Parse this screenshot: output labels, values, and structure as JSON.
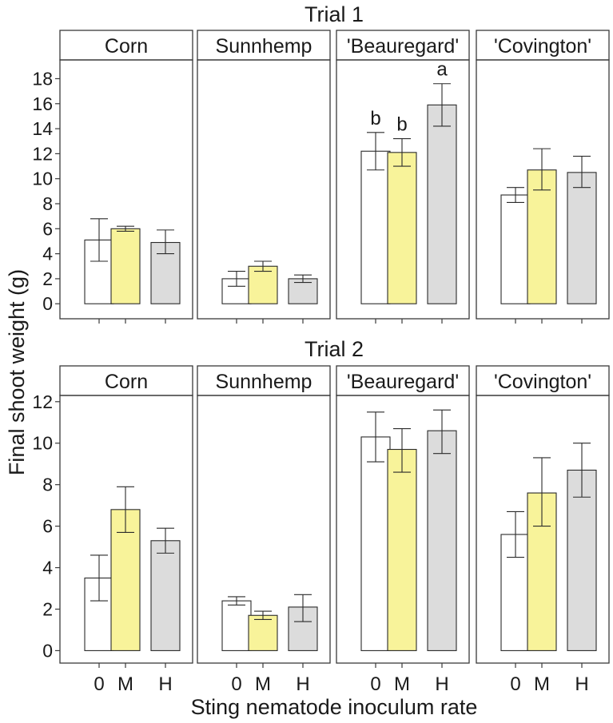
{
  "figure": {
    "ylabel": "Final shoot weight (g)",
    "xlabel": "Sting nematode inoculum rate"
  },
  "colors": {
    "0": "#ffffff",
    "M": "#f8f39a",
    "H": "#dcdcdc"
  },
  "chart_data": [
    {
      "type": "bar",
      "title": "Trial 1",
      "xlabel": "Sting nematode inoculum rate",
      "ylabel": "Final shoot weight (g)",
      "ylim": [
        -1.2,
        19.5
      ],
      "yticks": [
        0,
        2,
        4,
        6,
        8,
        10,
        12,
        14,
        16,
        18
      ],
      "categories": [
        "0",
        "M",
        "H"
      ],
      "panels": [
        {
          "name": "Corn",
          "values": [
            5.1,
            6.0,
            4.9
          ],
          "err_lo": [
            3.4,
            5.8,
            4.0
          ],
          "err_hi": [
            6.8,
            6.2,
            5.9
          ],
          "letters": [
            "",
            "",
            ""
          ]
        },
        {
          "name": "Sunnhemp",
          "values": [
            2.0,
            3.0,
            2.0
          ],
          "err_lo": [
            1.4,
            2.6,
            1.7
          ],
          "err_hi": [
            2.6,
            3.4,
            2.3
          ],
          "letters": [
            "",
            "",
            ""
          ]
        },
        {
          "name": "'Beauregard'",
          "values": [
            12.2,
            12.1,
            15.9
          ],
          "err_lo": [
            10.7,
            11.0,
            14.2
          ],
          "err_hi": [
            13.7,
            13.2,
            17.6
          ],
          "letters": [
            "b",
            "b",
            "a"
          ]
        },
        {
          "name": "'Covington'",
          "values": [
            8.7,
            10.7,
            10.5
          ],
          "err_lo": [
            8.1,
            9.1,
            9.3
          ],
          "err_hi": [
            9.3,
            12.4,
            11.8
          ],
          "letters": [
            "",
            "",
            ""
          ]
        }
      ]
    },
    {
      "type": "bar",
      "title": "Trial 2",
      "xlabel": "Sting nematode inoculum rate",
      "ylabel": "Final shoot weight (g)",
      "ylim": [
        -0.6,
        12.3
      ],
      "yticks": [
        0,
        2,
        4,
        6,
        8,
        10,
        12
      ],
      "categories": [
        "0",
        "M",
        "H"
      ],
      "panels": [
        {
          "name": "Corn",
          "values": [
            3.5,
            6.8,
            5.3
          ],
          "err_lo": [
            2.4,
            5.7,
            4.7
          ],
          "err_hi": [
            4.6,
            7.9,
            5.9
          ],
          "letters": [
            "",
            "",
            ""
          ]
        },
        {
          "name": "Sunnhemp",
          "values": [
            2.4,
            1.7,
            2.1
          ],
          "err_lo": [
            2.2,
            1.5,
            1.4
          ],
          "err_hi": [
            2.6,
            1.9,
            2.7
          ],
          "letters": [
            "",
            "",
            ""
          ]
        },
        {
          "name": "'Beauregard'",
          "values": [
            10.3,
            9.7,
            10.6
          ],
          "err_lo": [
            9.1,
            8.6,
            9.5
          ],
          "err_hi": [
            11.5,
            10.7,
            11.6
          ],
          "letters": [
            "",
            "",
            ""
          ]
        },
        {
          "name": "'Covington'",
          "values": [
            5.6,
            7.6,
            8.7
          ],
          "err_lo": [
            4.5,
            6.0,
            7.4
          ],
          "err_hi": [
            6.7,
            9.3,
            10.0
          ],
          "letters": [
            "",
            "",
            ""
          ]
        }
      ]
    }
  ]
}
